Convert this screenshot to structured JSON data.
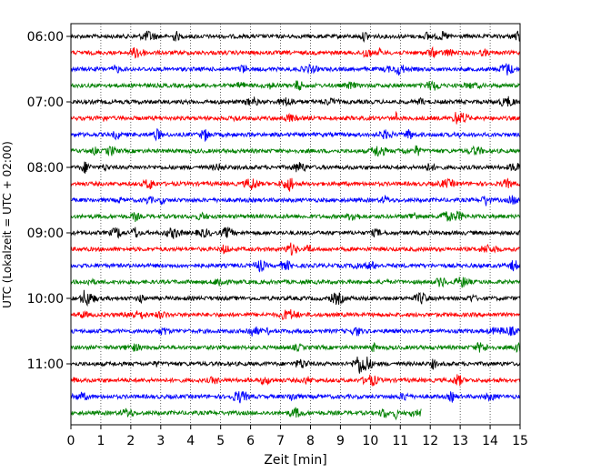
{
  "chart_data": {
    "type": "line",
    "title": "",
    "xlabel": "Zeit  [min]",
    "ylabel": "UTC (Lokalzeit = UTC + 02:00)",
    "xlim": [
      0,
      15
    ],
    "x_ticks": [
      "0",
      "1",
      "2",
      "3",
      "4",
      "5",
      "6",
      "7",
      "8",
      "9",
      "10",
      "11",
      "12",
      "13",
      "14",
      "15"
    ],
    "y_tick_labels": [
      "06:00",
      "07:00",
      "08:00",
      "09:00",
      "10:00",
      "11:00"
    ],
    "grid": "vertical-dotted",
    "trace_interval_min": 15,
    "trace_colors": [
      "#000000",
      "#ff0000",
      "#0000ff",
      "#008000"
    ],
    "series": [
      {
        "start": "06:00",
        "end_min": 15
      },
      {
        "start": "06:15",
        "end_min": 15
      },
      {
        "start": "06:30",
        "end_min": 15
      },
      {
        "start": "06:45",
        "end_min": 15
      },
      {
        "start": "07:00",
        "end_min": 15
      },
      {
        "start": "07:15",
        "end_min": 15
      },
      {
        "start": "07:30",
        "end_min": 15
      },
      {
        "start": "07:45",
        "end_min": 15
      },
      {
        "start": "08:00",
        "end_min": 15
      },
      {
        "start": "08:15",
        "end_min": 15
      },
      {
        "start": "08:30",
        "end_min": 15
      },
      {
        "start": "08:45",
        "end_min": 15
      },
      {
        "start": "09:00",
        "end_min": 15
      },
      {
        "start": "09:15",
        "end_min": 15
      },
      {
        "start": "09:30",
        "end_min": 15
      },
      {
        "start": "09:45",
        "end_min": 15
      },
      {
        "start": "10:00",
        "end_min": 15
      },
      {
        "start": "10:15",
        "end_min": 15
      },
      {
        "start": "10:30",
        "end_min": 15
      },
      {
        "start": "10:45",
        "end_min": 15
      },
      {
        "start": "11:00",
        "end_min": 15
      },
      {
        "start": "11:15",
        "end_min": 15
      },
      {
        "start": "11:30",
        "end_min": 15
      },
      {
        "start": "11:45",
        "end_min": 11.7
      }
    ]
  }
}
